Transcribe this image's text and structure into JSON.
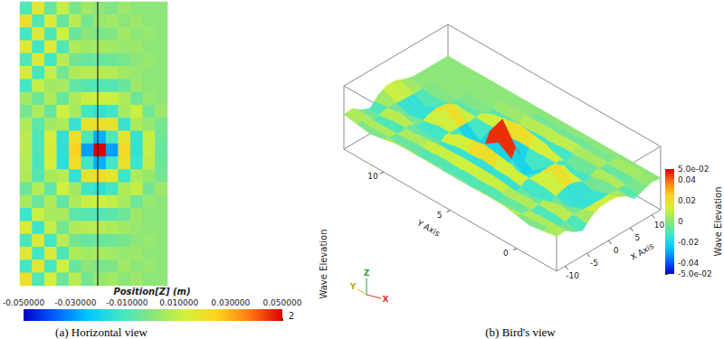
{
  "chart_data": [
    {
      "type": "heatmap",
      "title": "(a) Horizontal view",
      "colorbar": {
        "title": "Position[Z] (m)",
        "range": [
          -0.05,
          0.05
        ],
        "ticks": [
          {
            "value": -0.05,
            "label": "-0.050000"
          },
          {
            "value": -0.03,
            "label": "-0.030000"
          },
          {
            "value": -0.01,
            "label": "-0.010000"
          },
          {
            "value": 0.01,
            "label": "0.010000"
          },
          {
            "value": 0.03,
            "label": "0.030000"
          },
          {
            "value": 0.05,
            "label": "0.050000"
          }
        ]
      },
      "annotations": [
        "2"
      ],
      "cells": [
        [
          -0.01,
          0.016,
          -0.006,
          0.01,
          -0.003,
          0.004,
          0,
          -0.002,
          0.003,
          0,
          0,
          0
        ],
        [
          0.02,
          -0.01,
          0.014,
          -0.006,
          0.008,
          -0.004,
          0.002,
          0.004,
          0,
          0.003,
          0,
          0
        ],
        [
          -0.012,
          0.016,
          -0.01,
          0.012,
          -0.006,
          0,
          -0.003,
          -0.002,
          0.004,
          0,
          0.002,
          0
        ],
        [
          0.016,
          -0.012,
          0.015,
          -0.01,
          0.006,
          0.004,
          0.005,
          0.004,
          0.002,
          0.003,
          0,
          0
        ],
        [
          -0.01,
          0.015,
          -0.012,
          0.008,
          -0.004,
          -0.006,
          -0.006,
          -0.005,
          -0.003,
          0,
          0.002,
          0
        ],
        [
          0.014,
          -0.012,
          0.01,
          -0.004,
          0.006,
          0.008,
          0.008,
          0.007,
          0.004,
          0.002,
          0,
          0
        ],
        [
          -0.012,
          0.01,
          0.004,
          0.005,
          -0.007,
          -0.009,
          -0.01,
          -0.009,
          -0.006,
          0.003,
          0,
          0
        ],
        [
          0.004,
          -0.005,
          0.006,
          -0.006,
          0.006,
          0.011,
          0.012,
          0.011,
          0.006,
          -0.005,
          0.002,
          0
        ],
        [
          -0.004,
          0.006,
          -0.006,
          0.012,
          0.005,
          -0.012,
          -0.015,
          -0.012,
          0.005,
          0.011,
          -0.004,
          0.003
        ],
        [
          0.006,
          -0.008,
          0.004,
          0.006,
          -0.014,
          0.018,
          0.02,
          0.018,
          -0.014,
          0.006,
          0.002,
          -0.004
        ],
        [
          0.008,
          -0.01,
          0.013,
          -0.015,
          0.02,
          -0.01,
          -0.028,
          -0.01,
          0.018,
          -0.014,
          0.01,
          -0.005
        ],
        [
          0.008,
          -0.01,
          0.014,
          -0.016,
          0.024,
          -0.03,
          0.05,
          -0.03,
          0.022,
          -0.014,
          0.01,
          -0.006
        ],
        [
          0.007,
          -0.011,
          0.013,
          -0.016,
          0.02,
          -0.012,
          -0.028,
          -0.012,
          0.019,
          -0.013,
          0.009,
          -0.005
        ],
        [
          0.006,
          -0.009,
          0.005,
          0.007,
          -0.015,
          0.018,
          0.021,
          0.017,
          -0.013,
          0.006,
          0.002,
          -0.004
        ],
        [
          -0.005,
          0.007,
          -0.007,
          0.012,
          0.004,
          -0.013,
          -0.016,
          -0.012,
          0.006,
          0.01,
          -0.004,
          0.003
        ],
        [
          0.005,
          -0.006,
          0.006,
          -0.007,
          0.006,
          0.011,
          0.012,
          0.01,
          0.005,
          -0.005,
          0.002,
          0
        ],
        [
          -0.013,
          0.011,
          0.005,
          0.005,
          -0.008,
          -0.009,
          -0.01,
          -0.008,
          -0.005,
          0.003,
          0,
          0
        ],
        [
          0.015,
          -0.013,
          0.01,
          -0.004,
          0.006,
          0.008,
          0.008,
          0.006,
          0.004,
          0.002,
          0,
          0
        ],
        [
          -0.011,
          0.016,
          -0.012,
          0.008,
          -0.004,
          -0.006,
          -0.006,
          -0.005,
          -0.003,
          0,
          0.002,
          0
        ],
        [
          0.016,
          -0.012,
          0.014,
          -0.01,
          0.006,
          0.004,
          0.005,
          0.004,
          0.002,
          0.003,
          0,
          0
        ],
        [
          -0.012,
          0.017,
          -0.011,
          0.012,
          -0.006,
          0,
          -0.003,
          -0.002,
          0.004,
          0,
          0.002,
          0
        ],
        [
          0.02,
          -0.01,
          0.013,
          -0.006,
          0.008,
          -0.004,
          0.002,
          0.004,
          0,
          0.003,
          0,
          0
        ]
      ]
    },
    {
      "type": "surface",
      "title": "(b) Bird's view",
      "xlabel": "X Axis",
      "ylabel": "Y Axis",
      "zlabel": "Wave Elevation",
      "xlim": [
        -12,
        12
      ],
      "ylim": [
        -3,
        13
      ],
      "zlim": [
        -0.05,
        0.05
      ],
      "xticks": [
        -10,
        -5,
        0,
        5,
        10
      ],
      "yticks": [
        0,
        5,
        10
      ],
      "x": [
        -12,
        -10,
        -8,
        -6,
        -4,
        -2,
        0,
        2,
        4,
        6,
        8,
        10,
        12
      ],
      "y": [
        -3,
        -1,
        1,
        3,
        5,
        7,
        9,
        11,
        13
      ],
      "z": [
        [
          0.005,
          0.006,
          -0.004,
          -0.01,
          0.004,
          0.011,
          0.012,
          0.011,
          0.004,
          -0.008,
          -0.003,
          0.002,
          0
        ],
        [
          -0.002,
          0.006,
          -0.01,
          0.008,
          -0.004,
          -0.014,
          -0.015,
          -0.014,
          -0.004,
          0.006,
          -0.006,
          0.004,
          0
        ],
        [
          0.006,
          -0.006,
          0.006,
          -0.006,
          -0.012,
          0.012,
          0.02,
          0.012,
          -0.012,
          -0.005,
          0.005,
          -0.003,
          0
        ],
        [
          0.007,
          -0.009,
          0.011,
          -0.014,
          0.013,
          -0.012,
          -0.02,
          -0.012,
          0.013,
          -0.012,
          0.009,
          -0.005,
          0
        ],
        [
          0.008,
          -0.01,
          0.012,
          -0.015,
          0.02,
          -0.02,
          0.045,
          -0.02,
          0.02,
          -0.013,
          0.008,
          -0.004,
          0
        ],
        [
          0.007,
          -0.009,
          0.011,
          -0.014,
          0.013,
          -0.012,
          -0.02,
          -0.012,
          0.012,
          -0.008,
          0.003,
          0,
          0
        ],
        [
          0.006,
          -0.006,
          0.006,
          -0.006,
          -0.012,
          0.012,
          0.02,
          0.011,
          -0.008,
          -0.002,
          0,
          0,
          0
        ],
        [
          -0.002,
          0.006,
          -0.01,
          0.008,
          -0.004,
          -0.014,
          -0.015,
          -0.01,
          -0.002,
          0,
          0,
          0,
          0
        ],
        [
          0.005,
          0.006,
          -0.004,
          -0.01,
          0.004,
          0.011,
          0.01,
          0.004,
          0,
          0,
          0,
          0,
          0
        ]
      ],
      "colorbar": {
        "title": "Wave Elevation",
        "range": [
          -0.05,
          0.05
        ],
        "ticks": [
          {
            "value": -0.05,
            "label": "-5.0e-02"
          },
          -0.04,
          -0.02,
          0,
          0.02,
          0.04,
          {
            "value": 0.05,
            "label": "5.0e-02"
          }
        ]
      },
      "annotations": [
        "X",
        "Y",
        "Z"
      ]
    }
  ]
}
